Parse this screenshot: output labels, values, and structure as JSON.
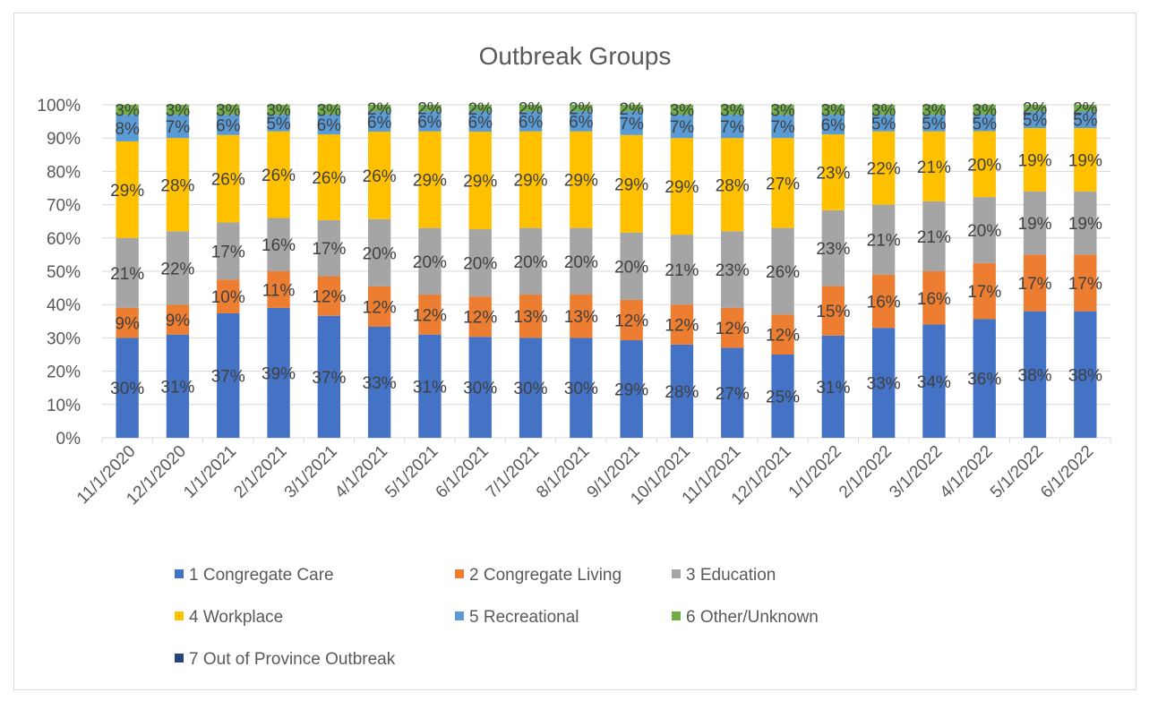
{
  "chart_data": {
    "type": "bar",
    "stacked": "percent",
    "title": "Outbreak Groups",
    "xlabel": "",
    "ylabel": "",
    "ylim": [
      0,
      1
    ],
    "y_ticks": [
      "0%",
      "10%",
      "20%",
      "30%",
      "40%",
      "50%",
      "60%",
      "70%",
      "80%",
      "90%",
      "100%"
    ],
    "grid": true,
    "legend_position": "bottom",
    "categories": [
      "11/1/2020",
      "12/1/2020",
      "1/1/2021",
      "2/1/2021",
      "3/1/2021",
      "4/1/2021",
      "5/1/2021",
      "6/1/2021",
      "7/1/2021",
      "8/1/2021",
      "9/1/2021",
      "10/1/2021",
      "11/1/2021",
      "12/1/2021",
      "1/1/2022",
      "2/1/2022",
      "3/1/2022",
      "4/1/2022",
      "5/1/2022",
      "6/1/2022"
    ],
    "series": [
      {
        "name": "1 Congregate Care",
        "color": "#4472c4",
        "values": [
          30,
          31,
          37,
          39,
          37,
          33,
          31,
          30,
          30,
          30,
          29,
          28,
          27,
          25,
          31,
          33,
          34,
          36,
          38,
          38
        ]
      },
      {
        "name": "2 Congregate Living",
        "color": "#ed7d31",
        "values": [
          9,
          9,
          10,
          11,
          12,
          12,
          12,
          12,
          13,
          13,
          12,
          12,
          12,
          12,
          15,
          16,
          16,
          17,
          17,
          17
        ]
      },
      {
        "name": "3 Education",
        "color": "#a5a5a5",
        "values": [
          21,
          22,
          17,
          16,
          17,
          20,
          20,
          20,
          20,
          20,
          20,
          21,
          23,
          26,
          23,
          21,
          21,
          20,
          19,
          19
        ]
      },
      {
        "name": "4 Workplace",
        "color": "#ffc000",
        "values": [
          29,
          28,
          26,
          26,
          26,
          26,
          29,
          29,
          29,
          29,
          29,
          29,
          28,
          27,
          23,
          22,
          21,
          20,
          19,
          19
        ]
      },
      {
        "name": "5 Recreational",
        "color": "#5b9bd5",
        "values": [
          8,
          7,
          6,
          5,
          6,
          6,
          6,
          6,
          6,
          6,
          7,
          7,
          7,
          7,
          6,
          5,
          5,
          5,
          5,
          5
        ]
      },
      {
        "name": "6 Other/Unknown",
        "color": "#70ad47",
        "values": [
          3,
          3,
          3,
          3,
          3,
          2,
          2,
          2,
          2,
          2,
          2,
          3,
          3,
          3,
          3,
          3,
          3,
          3,
          2,
          2
        ]
      },
      {
        "name": "7 Out of Province Outbreak",
        "color": "#264478",
        "values": [
          0,
          0,
          0,
          0,
          0,
          0,
          0,
          0,
          0,
          0,
          0,
          0,
          0,
          0,
          0,
          0,
          0,
          0,
          0,
          0
        ]
      }
    ],
    "value_suffix": "%"
  }
}
